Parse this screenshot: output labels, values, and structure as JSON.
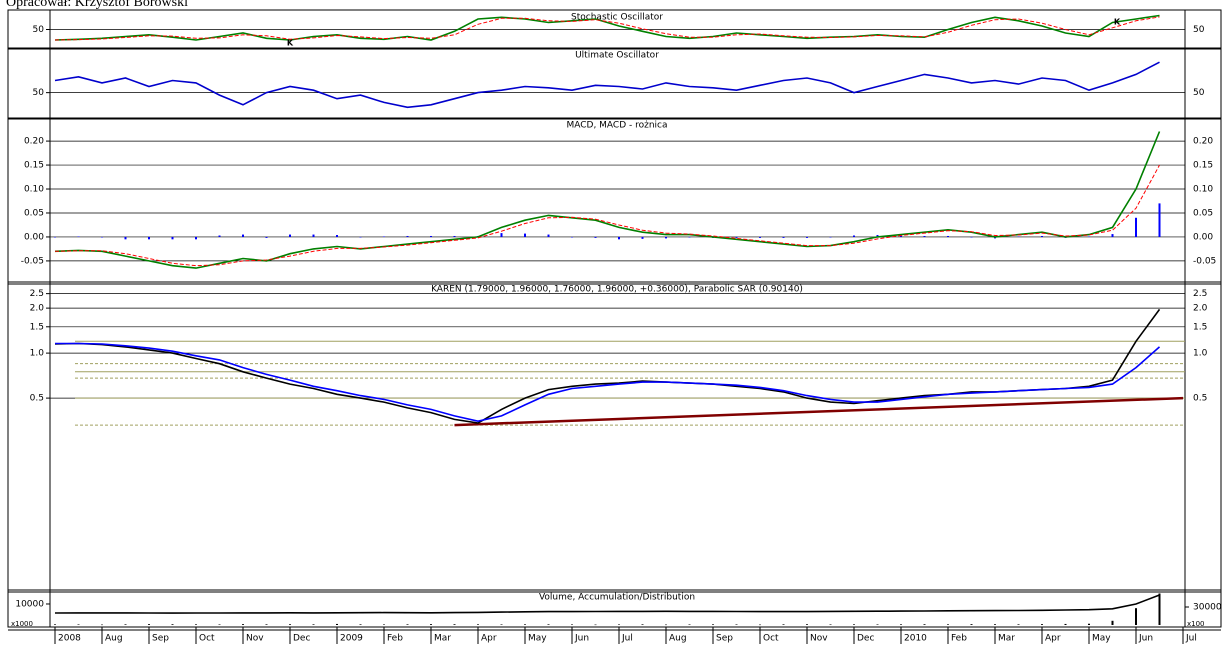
{
  "header": "Opracował: Krzysztof Borowski",
  "chart_data": [
    {
      "type": "line",
      "title": "Stochastic Oscillator",
      "ylim": [
        0,
        100
      ],
      "yticks": [
        50
      ],
      "grid": true,
      "annotations": [
        "K",
        "K"
      ],
      "x": [
        0,
        0.5,
        1,
        1.5,
        2,
        2.5,
        3,
        3.5,
        4,
        4.5,
        5,
        5.5,
        6,
        6.5,
        7,
        7.5,
        8,
        8.5,
        9,
        9.5,
        10,
        10.5,
        11,
        11.5,
        12,
        12.5,
        13,
        13.5,
        14,
        14.5,
        15,
        15.5,
        16,
        16.5,
        17,
        17.5,
        18,
        18.5,
        19,
        19.5,
        20,
        20.5,
        21,
        21.5,
        22,
        22.5,
        23,
        23.5
      ],
      "series": [
        {
          "color": "#008000",
          "values": [
            20,
            22,
            25,
            30,
            35,
            28,
            20,
            30,
            40,
            25,
            20,
            30,
            35,
            25,
            22,
            30,
            20,
            45,
            80,
            85,
            80,
            70,
            75,
            80,
            60,
            45,
            30,
            25,
            30,
            40,
            35,
            30,
            25,
            28,
            30,
            35,
            30,
            28,
            50,
            70,
            85,
            75,
            60,
            40,
            30,
            70,
            80,
            90
          ]
        },
        {
          "color": "#ff0000",
          "dash": true,
          "values": [
            20,
            21,
            23,
            27,
            32,
            31,
            25,
            26,
            35,
            32,
            22,
            26,
            33,
            29,
            24,
            27,
            25,
            35,
            65,
            82,
            82,
            75,
            73,
            78,
            68,
            52,
            38,
            28,
            28,
            35,
            37,
            32,
            28,
            27,
            29,
            33,
            32,
            29,
            42,
            62,
            78,
            80,
            68,
            50,
            35,
            55,
            75,
            86
          ]
        }
      ]
    },
    {
      "type": "line",
      "title": "Ultimate Oscillator",
      "ylim": [
        30,
        85
      ],
      "yticks": [
        50
      ],
      "grid": true,
      "x": [
        0,
        0.5,
        1,
        1.5,
        2,
        2.5,
        3,
        3.5,
        4,
        4.5,
        5,
        5.5,
        6,
        6.5,
        7,
        7.5,
        8,
        8.5,
        9,
        9.5,
        10,
        10.5,
        11,
        11.5,
        12,
        12.5,
        13,
        13.5,
        14,
        14.5,
        15,
        15.5,
        16,
        16.5,
        17,
        17.5,
        18,
        18.5,
        19,
        19.5,
        20,
        20.5,
        21,
        21.5,
        22,
        22.5,
        23,
        23.5
      ],
      "series": [
        {
          "color": "#0000cc",
          "values": [
            60,
            63,
            58,
            62,
            55,
            60,
            58,
            48,
            40,
            50,
            55,
            52,
            45,
            48,
            42,
            38,
            40,
            45,
            50,
            52,
            55,
            54,
            52,
            56,
            55,
            53,
            58,
            55,
            54,
            52,
            56,
            60,
            62,
            58,
            50,
            55,
            60,
            65,
            62,
            58,
            60,
            57,
            62,
            60,
            52,
            58,
            65,
            75
          ]
        }
      ]
    },
    {
      "type": "line",
      "title": "MACD, MACD - rożnica",
      "ylim": [
        -0.094,
        0.244
      ],
      "grid": true,
      "yticks": [
        {
          "value": 0.2,
          "label": "0.20"
        },
        0.15,
        {
          "value": 0.1,
          "label": "0.10"
        },
        0.05,
        {
          "value": 0,
          "label": "0.00"
        },
        -0.05
      ],
      "x": [
        0,
        0.5,
        1,
        1.5,
        2,
        2.5,
        3,
        3.5,
        4,
        4.5,
        5,
        5.5,
        6,
        6.5,
        7,
        7.5,
        8,
        8.5,
        9,
        9.5,
        10,
        10.5,
        11,
        11.5,
        12,
        12.5,
        13,
        13.5,
        14,
        14.5,
        15,
        15.5,
        16,
        16.5,
        17,
        17.5,
        18,
        18.5,
        19,
        19.5,
        20,
        20.5,
        21,
        21.5,
        22,
        22.5,
        23,
        23.5
      ],
      "series": [
        {
          "color": "#0000ff",
          "kind": "bar",
          "values": [
            0,
            0.001,
            -0.001,
            -0.005,
            -0.005,
            -0.005,
            -0.005,
            0.003,
            0.005,
            -0.002,
            0.005,
            0.005,
            0.004,
            -0.001,
            0.001,
            0.002,
            0.002,
            0.002,
            0.002,
            0.008,
            0.007,
            0.005,
            -0.001,
            -0.002,
            -0.005,
            -0.004,
            -0.003,
            -0.001,
            -0.002,
            -0.002,
            -0.002,
            -0.002,
            -0.002,
            0,
            0.003,
            0.004,
            0.002,
            0.002,
            0.002,
            -0.001,
            -0.003,
            0.001,
            0.002,
            -0.002,
            0.001,
            0.006,
            0.04,
            0.07
          ]
        },
        {
          "color": "#008000",
          "values": [
            -0.03,
            -0.028,
            -0.03,
            -0.04,
            -0.05,
            -0.06,
            -0.065,
            -0.055,
            -0.045,
            -0.05,
            -0.035,
            -0.025,
            -0.02,
            -0.025,
            -0.02,
            -0.015,
            -0.01,
            -0.005,
            0,
            0.02,
            0.035,
            0.045,
            0.04,
            0.035,
            0.02,
            0.01,
            0.005,
            0.005,
            0,
            -0.005,
            -0.01,
            -0.015,
            -0.02,
            -0.018,
            -0.01,
            0,
            0.005,
            0.01,
            0.015,
            0.01,
            0,
            0.005,
            0.01,
            0,
            0.005,
            0.02,
            0.1,
            0.22
          ]
        },
        {
          "color": "#ff0000",
          "dash": true,
          "values": [
            -0.03,
            -0.029,
            -0.029,
            -0.035,
            -0.045,
            -0.055,
            -0.06,
            -0.058,
            -0.05,
            -0.048,
            -0.04,
            -0.03,
            -0.024,
            -0.024,
            -0.021,
            -0.017,
            -0.012,
            -0.007,
            -0.002,
            0.012,
            0.028,
            0.04,
            0.041,
            0.037,
            0.025,
            0.014,
            0.008,
            0.006,
            0.002,
            -0.003,
            -0.008,
            -0.013,
            -0.018,
            -0.018,
            -0.013,
            -0.004,
            0.003,
            0.008,
            0.013,
            0.011,
            0.003,
            0.004,
            0.008,
            0.002,
            0.004,
            0.014,
            0.06,
            0.15
          ]
        }
      ]
    },
    {
      "type": "line",
      "title": "KAREN (1.79000, 1.96000, 1.76000, 1.96000, +0.36000), Parabolic SAR (0.90140)",
      "log_scale": true,
      "ylim": [
        0.026,
        2.9
      ],
      "grid": true,
      "yticks": [
        2.5,
        {
          "value": 2,
          "label": "2.0"
        },
        1.5,
        {
          "value": 1,
          "label": "1.0"
        },
        0.5
      ],
      "levels": [
        1.2,
        0.85,
        0.75,
        0.68,
        0.5,
        0.33
      ],
      "level_color": "#a0a060",
      "trendline": {
        "color": "#800000",
        "x": [
          8.5,
          24
        ],
        "values": [
          0.33,
          0.5
        ]
      },
      "x": [
        0,
        0.5,
        1,
        1.5,
        2,
        2.5,
        3,
        3.5,
        4,
        4.5,
        5,
        5.5,
        6,
        6.5,
        7,
        7.5,
        8,
        8.5,
        9,
        9.5,
        10,
        10.5,
        11,
        11.5,
        12,
        12.5,
        13,
        13.5,
        14,
        14.5,
        15,
        15.5,
        16,
        16.5,
        17,
        17.5,
        18,
        18.5,
        19,
        19.5,
        20,
        20.5,
        21,
        21.5,
        22,
        22.5,
        23,
        23.5
      ],
      "series": [
        {
          "color": "#000000",
          "values": [
            1.15,
            1.16,
            1.14,
            1.1,
            1.05,
            1.0,
            0.92,
            0.85,
            0.75,
            0.68,
            0.62,
            0.58,
            0.53,
            0.5,
            0.47,
            0.43,
            0.4,
            0.36,
            0.34,
            0.42,
            0.5,
            0.57,
            0.6,
            0.62,
            0.63,
            0.65,
            0.64,
            0.63,
            0.62,
            0.6,
            0.58,
            0.55,
            0.5,
            0.47,
            0.46,
            0.48,
            0.5,
            0.52,
            0.53,
            0.55,
            0.55,
            0.56,
            0.57,
            0.58,
            0.6,
            0.66,
            1.2,
            1.96
          ]
        },
        {
          "color": "#0000ff",
          "values": [
            1.16,
            1.16,
            1.15,
            1.12,
            1.08,
            1.03,
            0.96,
            0.9,
            0.8,
            0.72,
            0.66,
            0.6,
            0.56,
            0.52,
            0.49,
            0.45,
            0.42,
            0.38,
            0.35,
            0.38,
            0.45,
            0.53,
            0.58,
            0.6,
            0.62,
            0.64,
            0.64,
            0.63,
            0.62,
            0.61,
            0.59,
            0.56,
            0.52,
            0.49,
            0.47,
            0.47,
            0.49,
            0.51,
            0.53,
            0.54,
            0.55,
            0.56,
            0.57,
            0.58,
            0.59,
            0.62,
            0.8,
            1.1
          ]
        }
      ]
    },
    {
      "type": "line",
      "title": "Volume, Accumulation/Distribution",
      "left_unit": "x1000",
      "right_unit": "x100",
      "ylim": [
        0,
        15700
      ],
      "yticks": [
        10000
      ],
      "y2lim": [
        0,
        55000
      ],
      "y2ticks": [
        30000
      ],
      "x": [
        0,
        0.5,
        1,
        1.5,
        2,
        2.5,
        3,
        3.5,
        4,
        4.5,
        5,
        5.5,
        6,
        6.5,
        7,
        7.5,
        8,
        8.5,
        9,
        9.5,
        10,
        10.5,
        11,
        11.5,
        12,
        12.5,
        13,
        13.5,
        14,
        14.5,
        15,
        15.5,
        16,
        16.5,
        17,
        17.5,
        18,
        18.5,
        19,
        19.5,
        20,
        20.5,
        21,
        21.5,
        22,
        22.5,
        23,
        23.5
      ],
      "series": [
        {
          "color": "#000000",
          "kind": "bar",
          "values": [
            300,
            250,
            200,
            300,
            400,
            350,
            300,
            250,
            400,
            300,
            350,
            300,
            500,
            300,
            250,
            300,
            400,
            350,
            300,
            250,
            300,
            300,
            250,
            200,
            250,
            300,
            200,
            250,
            300,
            250,
            200,
            300,
            350,
            250,
            300,
            250,
            300,
            350,
            300,
            400,
            350,
            300,
            400,
            500,
            600,
            2000,
            8000,
            15000
          ]
        },
        {
          "color": "#000000",
          "axis": "y2",
          "values": [
            20000,
            20100,
            20150,
            20100,
            20000,
            19900,
            19950,
            20000,
            20100,
            20200,
            20300,
            20200,
            20300,
            20500,
            20600,
            20500,
            20400,
            20600,
            21000,
            21500,
            22000,
            22300,
            22400,
            22500,
            22600,
            22700,
            22800,
            22700,
            22600,
            22500,
            22400,
            22300,
            22400,
            22600,
            22800,
            23000,
            23200,
            23400,
            23600,
            23800,
            24000,
            24200,
            24500,
            25000,
            25500,
            27000,
            35000,
            50000
          ]
        }
      ],
      "xticks": [
        {
          "value": 0,
          "label": "2008"
        },
        {
          "value": 1,
          "label": "Aug"
        },
        {
          "value": 2,
          "label": "Sep"
        },
        {
          "value": 3,
          "label": "Oct"
        },
        {
          "value": 4,
          "label": "Nov"
        },
        {
          "value": 5,
          "label": "Dec"
        },
        {
          "value": 6,
          "label": "2009"
        },
        {
          "value": 7,
          "label": "Feb"
        },
        {
          "value": 8,
          "label": "Mar"
        },
        {
          "value": 9,
          "label": "Apr"
        },
        {
          "value": 10,
          "label": "May"
        },
        {
          "value": 11,
          "label": "Jun"
        },
        {
          "value": 12,
          "label": "Jul"
        },
        {
          "value": 13,
          "label": "Aug"
        },
        {
          "value": 14,
          "label": "Sep"
        },
        {
          "value": 15,
          "label": "Oct"
        },
        {
          "value": 16,
          "label": "Nov"
        },
        {
          "value": 17,
          "label": "Dec"
        },
        {
          "value": 18,
          "label": "2010"
        },
        {
          "value": 19,
          "label": "Feb"
        },
        {
          "value": 20,
          "label": "Mar"
        },
        {
          "value": 21,
          "label": "Apr"
        },
        {
          "value": 22,
          "label": "May"
        },
        {
          "value": 23,
          "label": "Jun"
        },
        {
          "value": 24,
          "label": "Jul"
        }
      ]
    }
  ]
}
